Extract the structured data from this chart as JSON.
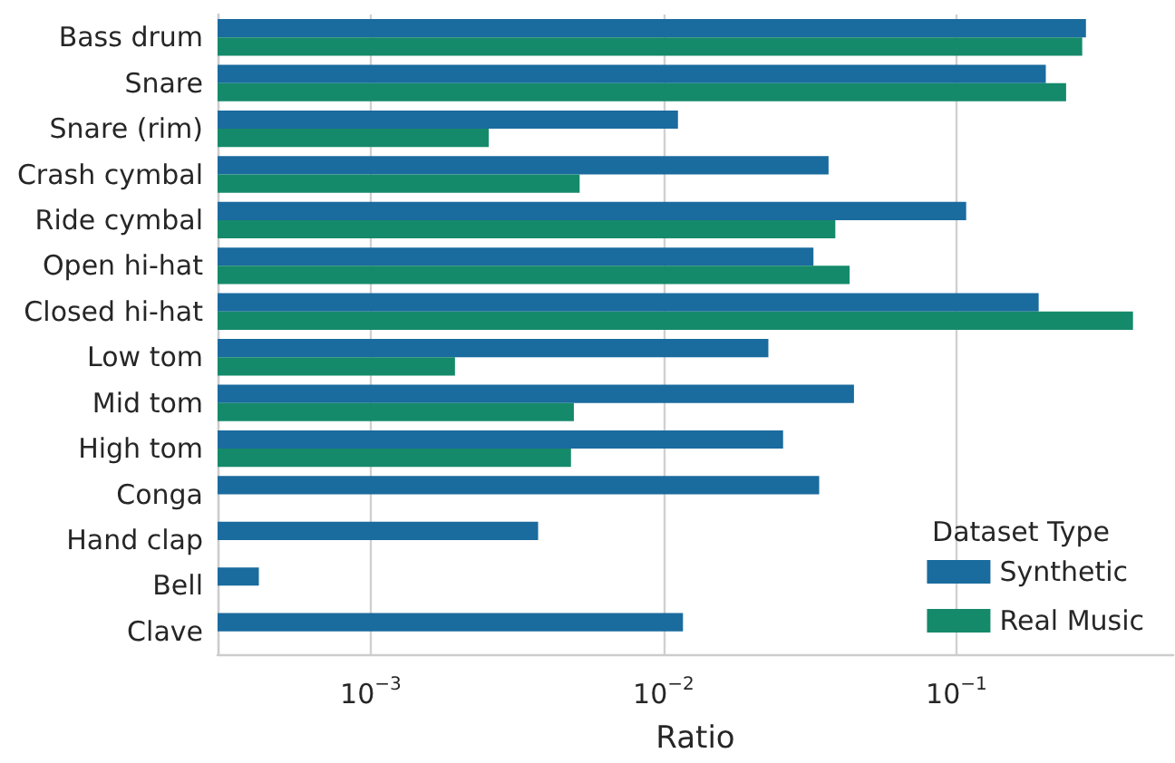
{
  "chart_data": {
    "type": "bar",
    "orientation": "horizontal",
    "log": "x",
    "xlabel": "Ratio",
    "legend_title": "Dataset Type",
    "legend": "bottom right",
    "grid": "x",
    "categories": [
      "Bass drum",
      "Snare",
      "Snare (rim)",
      "Crash cymbal",
      "Ride cymbal",
      "Open hi-hat",
      "Closed hi-hat",
      "Low tom",
      "Mid tom",
      "High tom",
      "Conga",
      "Hand clap",
      "Bell",
      "Clave"
    ],
    "series": [
      {
        "name": "Synthetic",
        "color": "#1a6b9e",
        "values": [
          0.277,
          0.202,
          0.0112,
          0.0366,
          0.108,
          0.0325,
          0.191,
          0.0228,
          0.0447,
          0.0256,
          0.034,
          0.00373,
          0.000415,
          0.01165
        ]
      },
      {
        "name": "Real Music",
        "color": "#158a6a",
        "values": [
          0.269,
          0.237,
          0.00253,
          0.00517,
          0.0386,
          0.0432,
          0.401,
          0.00194,
          0.00494,
          0.00483,
          null,
          null,
          null,
          null
        ]
      }
    ],
    "xlim": [
      0.0003,
      0.55
    ],
    "xticks": [
      {
        "value": 0.001,
        "label": "10$^{−3}$"
      },
      {
        "value": 0.01,
        "label": "10$^{−2}$"
      },
      {
        "value": 0.1,
        "label": "10$^{−1}$"
      }
    ]
  }
}
